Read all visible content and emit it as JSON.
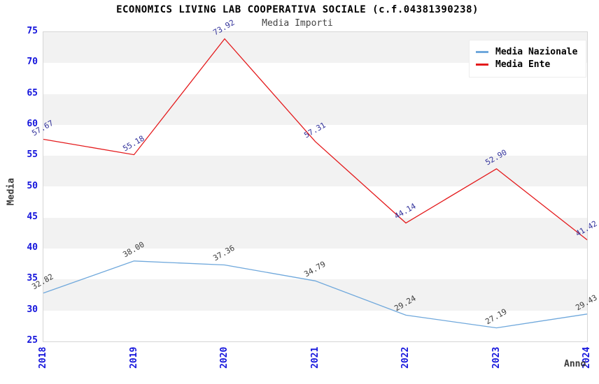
{
  "header": {
    "title": "ECONOMICS LIVING LAB COOPERATIVA SOCIALE (c.f.04381390238)",
    "subtitle": "Media Importi"
  },
  "chart_data": {
    "type": "line",
    "title": "ECONOMICS LIVING LAB COOPERATIVA SOCIALE (c.f.04381390238)",
    "subtitle": "Media Importi",
    "x": [
      2018,
      2019,
      2020,
      2021,
      2022,
      2023,
      2024
    ],
    "xlabel": "Anno",
    "ylabel": "Media",
    "ylim": [
      25,
      75
    ],
    "ytick_step": 5,
    "grid": "alternating-horizontal-bands",
    "legend_position": "top-right",
    "series": [
      {
        "name": "Media Nazionale",
        "color": "#6fa8dc",
        "label_color": "#3c3c3c",
        "values": [
          32.82,
          38.0,
          37.36,
          34.79,
          29.24,
          27.19,
          29.43
        ]
      },
      {
        "name": "Media Ente",
        "color": "#e41a1c",
        "label_color": "#32329b",
        "values": [
          57.67,
          55.18,
          73.92,
          57.31,
          44.14,
          52.9,
          41.42
        ]
      }
    ]
  },
  "colors": {
    "title": "#000000",
    "subtitle": "#444444",
    "tick": "#1414dc",
    "band": "#f2f2f2",
    "plot_border": "#d6d6d6",
    "axis_label": "#3a3a3a"
  }
}
